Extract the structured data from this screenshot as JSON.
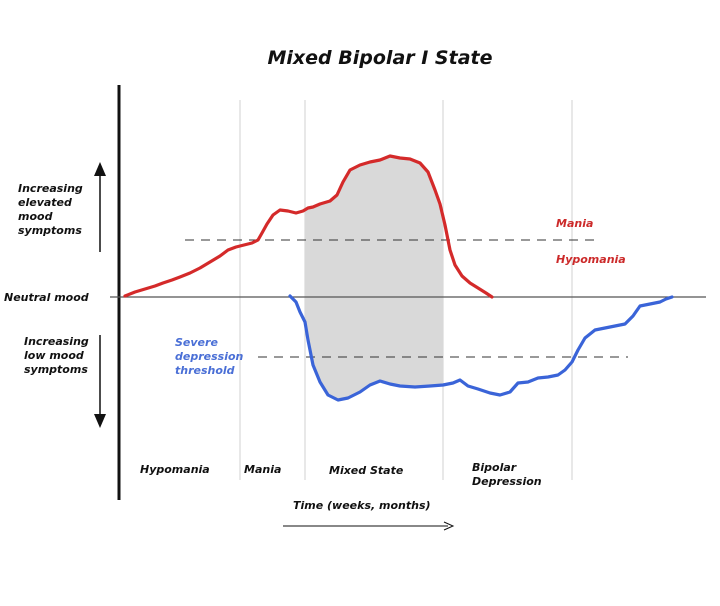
{
  "title": "Mixed Bipolar I State",
  "left_labels": {
    "elevated": [
      "Increasing",
      "elevated",
      "mood",
      "symptoms"
    ],
    "neutral": "Neutral mood",
    "low": [
      "Increasing",
      "low mood",
      "symptoms"
    ]
  },
  "threshold_labels": {
    "mania": "Mania",
    "hypomania": "Hypomania",
    "depression": [
      "Severe",
      "depression",
      "threshold"
    ]
  },
  "phases": [
    "Hypomania",
    "Mania",
    "Mixed State",
    "Bipolar",
    "Depression"
  ],
  "xaxis_label": "Time (weeks, months)",
  "colors": {
    "elevated_line": "#d42a2a",
    "low_line": "#3a64d8",
    "mixed_fill": "#d9d9d9",
    "guide": "#d0d0d0",
    "axis": "#111111"
  }
}
